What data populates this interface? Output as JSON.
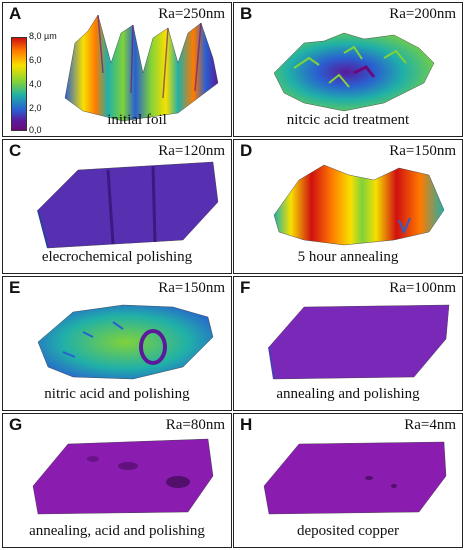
{
  "colorbar": {
    "ticks": [
      "8,0 µm",
      "6,0",
      "4,0",
      "2,0",
      "0,0"
    ],
    "colors": [
      "#d01010",
      "#ff7a00",
      "#f7e000",
      "#7fd23a",
      "#20b0a8",
      "#2a5fd0",
      "#6a0a7a"
    ]
  },
  "panels": [
    {
      "letter": "A",
      "ra": "Ra=250nm",
      "caption": "initial foil"
    },
    {
      "letter": "B",
      "ra": "Ra=200nm",
      "caption": "nitcic acid treatment"
    },
    {
      "letter": "C",
      "ra": "Ra=120nm",
      "caption": "elecrochemical polishing"
    },
    {
      "letter": "D",
      "ra": "Ra=150nm",
      "caption": "5 hour annealing"
    },
    {
      "letter": "E",
      "ra": "Ra=150nm",
      "caption": "nitric acid and polishing"
    },
    {
      "letter": "F",
      "ra": "Ra=100nm",
      "caption": "annealing and polishing"
    },
    {
      "letter": "G",
      "ra": "Ra=80nm",
      "caption": "annealing, acid and polishing"
    },
    {
      "letter": "H",
      "ra": "Ra=4nm",
      "caption": "deposited copper"
    }
  ]
}
